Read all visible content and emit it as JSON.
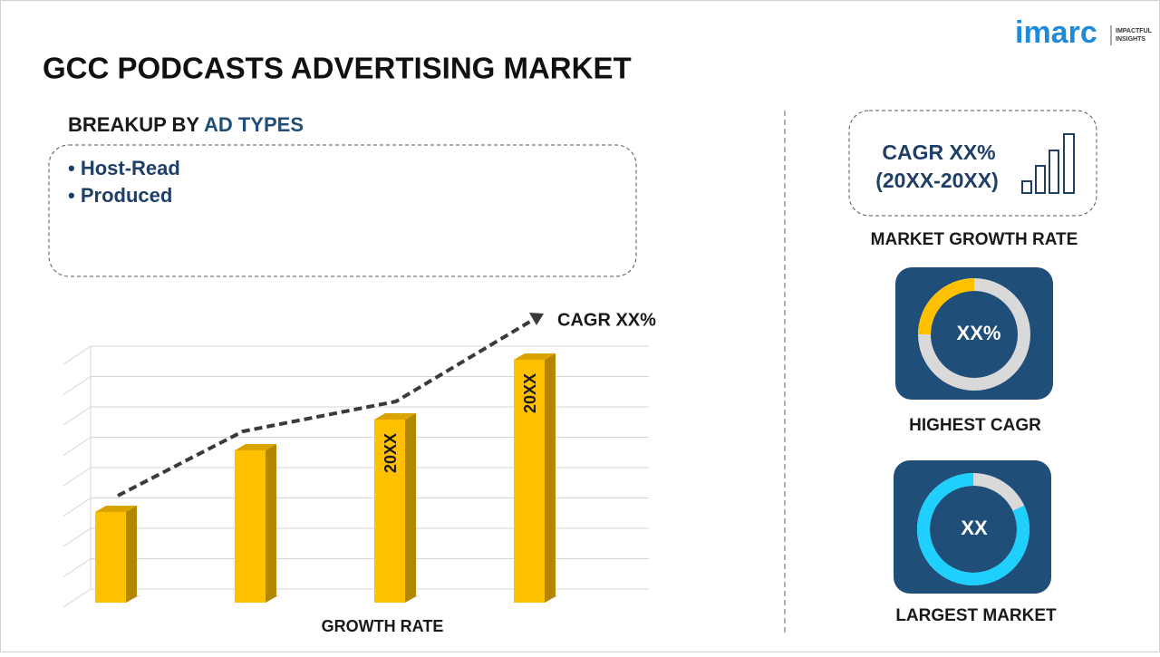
{
  "logo": {
    "name": "imarc",
    "tagline": [
      "IMPACTFUL",
      "INSIGHTS"
    ]
  },
  "header": {
    "title": "GCC PODCASTS ADVERTISING MARKET"
  },
  "breakup": {
    "label": "BREAKUP BY",
    "highlight": "AD TYPES",
    "items": [
      "Host-Read",
      "Produced"
    ]
  },
  "growth_chart": {
    "trend_label": "CAGR XX%",
    "bar_labels": [
      "20XX",
      "20XX"
    ],
    "axis_label": "GROWTH RATE"
  },
  "cards": [
    {
      "value": "CAGR XX%",
      "period": "(20XX-20XX)",
      "label": "MARKET GROWTH RATE"
    },
    {
      "value": "XX%",
      "label": "HIGHEST CAGR"
    },
    {
      "value": "XX",
      "label": "LARGEST MARKET"
    }
  ]
}
